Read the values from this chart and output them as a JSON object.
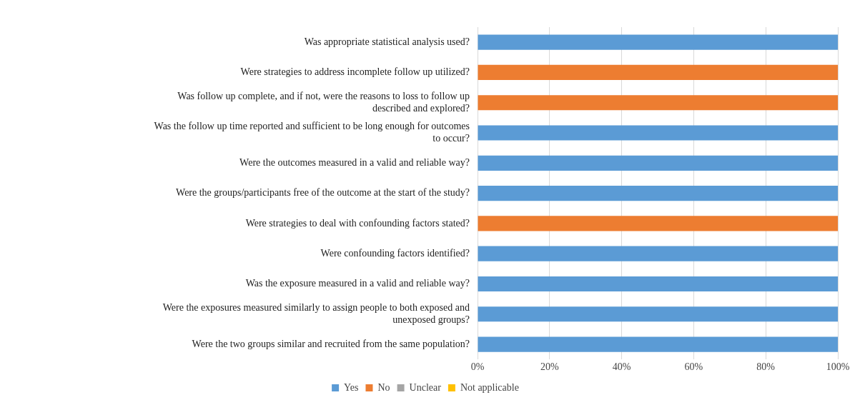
{
  "chart_data": {
    "type": "bar",
    "orientation": "horizontal",
    "stacked": true,
    "categories": [
      "Was appropriate statistical analysis used?",
      "Were strategies to address incomplete follow up utilized?",
      "Was follow up complete, and if not, were the reasons to loss to follow up described and explored?",
      "Was the follow up time reported and sufficient to be long enough for outcomes to occur?",
      "Were the outcomes measured in a valid and reliable way?",
      "Were the groups/participants free of the outcome at the start of the study?",
      "Were strategies to deal with confounding factors stated?",
      "Were confounding factors identified?",
      "Was the exposure measured in a valid and reliable way?",
      "Were the exposures measured similarly to assign people to both exposed and unexposed groups?",
      "Were the two groups similar and recruited from the same population?"
    ],
    "series": [
      {
        "name": "Yes",
        "color": "#5b9bd5",
        "values": [
          100,
          0,
          0,
          100,
          100,
          100,
          0,
          100,
          100,
          100,
          100
        ]
      },
      {
        "name": "No",
        "color": "#ed7d31",
        "values": [
          0,
          100,
          100,
          0,
          0,
          0,
          100,
          0,
          0,
          0,
          0
        ]
      },
      {
        "name": "Unclear",
        "color": "#a5a5a5",
        "values": [
          0,
          0,
          0,
          0,
          0,
          0,
          0,
          0,
          0,
          0,
          0
        ]
      },
      {
        "name": "Not applicable",
        "color": "#ffc000",
        "values": [
          0,
          0,
          0,
          0,
          0,
          0,
          0,
          0,
          0,
          0,
          0
        ]
      }
    ],
    "xlim": [
      0,
      100
    ],
    "xticks": [
      {
        "value": 0,
        "label": "0%"
      },
      {
        "value": 20,
        "label": "20%"
      },
      {
        "value": 40,
        "label": "40%"
      },
      {
        "value": 60,
        "label": "60%"
      },
      {
        "value": 80,
        "label": "80%"
      },
      {
        "value": 100,
        "label": "100%"
      }
    ],
    "grid": "x",
    "legend": "bottom"
  }
}
